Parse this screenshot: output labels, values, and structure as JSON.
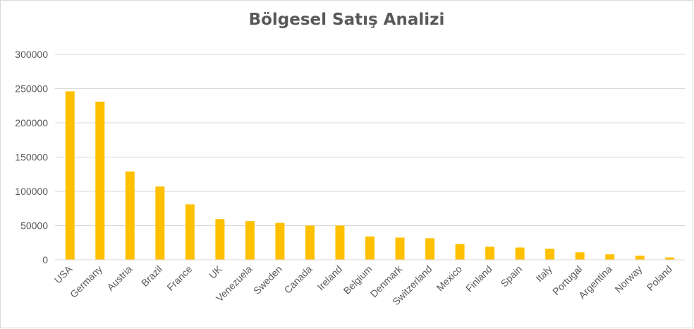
{
  "chart_data": {
    "type": "bar",
    "title": "Bölgesel Satış Analizi",
    "xlabel": "",
    "ylabel": "",
    "categories": [
      "USA",
      "Germany",
      "Austria",
      "Brazil",
      "France",
      "UK",
      "Venezuela",
      "Sweden",
      "Canada",
      "Ireland",
      "Belgium",
      "Denmark",
      "Switzerland",
      "Mexico",
      "Finland",
      "Spain",
      "Italy",
      "Portugal",
      "Argentina",
      "Norway",
      "Poland"
    ],
    "values": [
      246000,
      231000,
      129000,
      107000,
      81000,
      59500,
      56500,
      54000,
      50000,
      50000,
      34000,
      32500,
      31500,
      23000,
      19000,
      18000,
      16000,
      11000,
      8000,
      6000,
      3500
    ],
    "ylim": [
      0,
      300000
    ],
    "yticks": [
      "0",
      "50000",
      "100000",
      "150000",
      "200000",
      "250000",
      "300000"
    ],
    "grid": true,
    "bar_color": "#FFC000",
    "grid_color": "#D9D9D9",
    "text_color": "#595959"
  }
}
